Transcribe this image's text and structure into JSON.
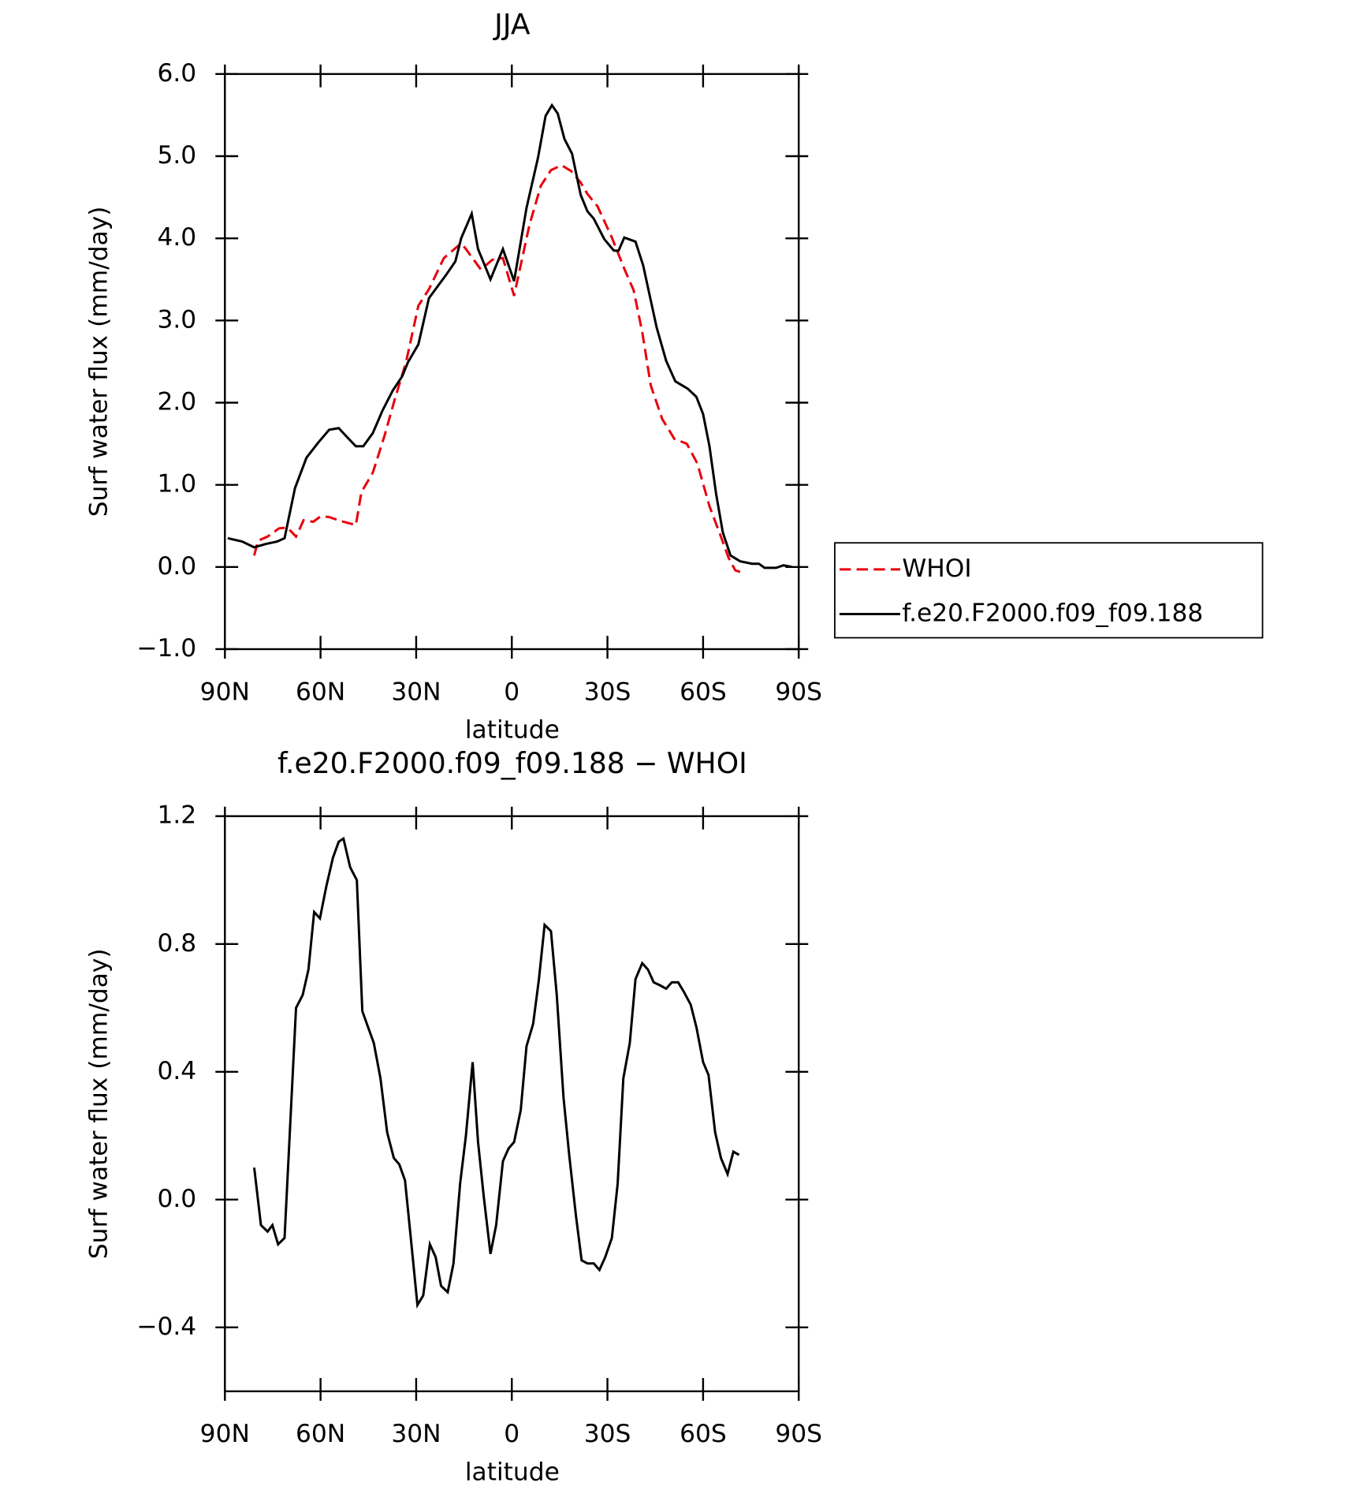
{
  "chart_data": [
    {
      "type": "line",
      "title": "JJA",
      "ylabel": "Surf water flux (mm/day)",
      "xlabel": "latitude",
      "xlim": [
        90,
        -90
      ],
      "xticks": [
        {
          "value": 90,
          "label": "90N"
        },
        {
          "value": 60,
          "label": "60N"
        },
        {
          "value": 30,
          "label": "30N"
        },
        0,
        {
          "value": -30,
          "label": "30S"
        },
        {
          "value": -60,
          "label": "60S"
        },
        {
          "value": -90,
          "label": "90S"
        }
      ],
      "ylim": [
        -1,
        6
      ],
      "yticks": [
        {
          "value": -1,
          "label": "−1.0"
        },
        {
          "value": 0,
          "label": "0.0"
        },
        {
          "value": 1,
          "label": "1.0"
        },
        {
          "value": 2,
          "label": "2.0"
        },
        {
          "value": 3,
          "label": "3.0"
        },
        {
          "value": 4,
          "label": "4.0"
        },
        {
          "value": 5,
          "label": "5.0"
        },
        {
          "value": 6,
          "label": "6.0"
        }
      ],
      "legend": "right",
      "series": [
        {
          "name": "WHOI",
          "color": "#e8000b",
          "style": "dashed",
          "x": [
            80.8,
            79.6,
            76.6,
            73.0,
            70.4,
            67.7,
            65.3,
            62.3,
            60.2,
            57.6,
            53.7,
            48.9,
            47.2,
            43.6,
            40.0,
            36.7,
            33.2,
            29.3,
            26.0,
            21.3,
            15.9,
            14.4,
            9.7,
            6.1,
            2.8,
            -0.7,
            -5.5,
            -9.1,
            -12.3,
            -15.6,
            -18.6,
            -21.6,
            -23.7,
            -26.9,
            -31.4,
            -35.3,
            -38.2,
            -40.9,
            -43.6,
            -47.2,
            -51.0,
            -54.9,
            -58.2,
            -62.0,
            -65.3,
            -68.0,
            -70.1,
            -71.6
          ],
          "values": [
            0.14,
            0.32,
            0.37,
            0.47,
            0.48,
            0.37,
            0.57,
            0.55,
            0.61,
            0.61,
            0.56,
            0.51,
            0.91,
            1.15,
            1.59,
            2.04,
            2.49,
            3.18,
            3.38,
            3.76,
            3.94,
            3.87,
            3.62,
            3.74,
            3.76,
            3.3,
            4.16,
            4.64,
            4.83,
            4.89,
            4.82,
            4.68,
            4.54,
            4.39,
            4.01,
            3.63,
            3.37,
            2.86,
            2.21,
            1.8,
            1.56,
            1.5,
            1.26,
            0.74,
            0.4,
            0.11,
            -0.04,
            -0.06
          ]
        },
        {
          "name": "f.e20.F2000.f09_f09.188",
          "color": "#000000",
          "style": "solid",
          "x": [
            89.1,
            84.6,
            80.8,
            77.2,
            73.6,
            71.3,
            68.0,
            64.4,
            60.8,
            57.3,
            54.3,
            51.9,
            48.9,
            46.6,
            43.6,
            40.6,
            37.3,
            34.4,
            32.6,
            29.3,
            26.0,
            23.4,
            20.7,
            17.7,
            15.9,
            12.6,
            10.6,
            6.7,
            2.8,
            -0.7,
            -4.6,
            -8.2,
            -10.6,
            -12.6,
            -14.4,
            -16.5,
            -18.9,
            -21.6,
            -23.7,
            -25.7,
            -29.0,
            -32.0,
            -33.5,
            -35.3,
            -38.8,
            -41.2,
            -45.4,
            -48.4,
            -51.3,
            -55.2,
            -57.9,
            -60.0,
            -62.0,
            -64.1,
            -66.2,
            -68.6,
            -71.6,
            -75.4,
            -77.5,
            -79.3,
            -82.9,
            -85.2,
            -87.9
          ],
          "values": [
            0.35,
            0.31,
            0.24,
            0.28,
            0.31,
            0.35,
            0.96,
            1.33,
            1.51,
            1.67,
            1.69,
            1.59,
            1.47,
            1.47,
            1.63,
            1.9,
            2.15,
            2.32,
            2.49,
            2.71,
            3.27,
            3.41,
            3.55,
            3.72,
            4.0,
            4.3,
            3.87,
            3.5,
            3.87,
            3.48,
            4.37,
            4.98,
            5.49,
            5.62,
            5.52,
            5.21,
            5.03,
            4.53,
            4.33,
            4.24,
            3.99,
            3.85,
            3.85,
            4.01,
            3.96,
            3.67,
            2.92,
            2.51,
            2.26,
            2.17,
            2.07,
            1.86,
            1.47,
            0.89,
            0.42,
            0.14,
            0.07,
            0.04,
            0.04,
            -0.01,
            -0.01,
            0.02,
            0.0
          ]
        }
      ]
    },
    {
      "type": "line",
      "title": "f.e20.F2000.f09_f09.188 − WHOI",
      "ylabel": "Surf water flux (mm/day)",
      "xlabel": "latitude",
      "xlim": [
        90,
        -90
      ],
      "xticks": [
        {
          "value": 90,
          "label": "90N"
        },
        {
          "value": 60,
          "label": "60N"
        },
        {
          "value": 30,
          "label": "30N"
        },
        0,
        {
          "value": -30,
          "label": "30S"
        },
        {
          "value": -60,
          "label": "60S"
        },
        {
          "value": -90,
          "label": "90S"
        }
      ],
      "ylim": [
        -0.6,
        1.2
      ],
      "yticks": [
        {
          "value": -0.4,
          "label": "−0.4"
        },
        {
          "value": 0,
          "label": "0.0"
        },
        0.4,
        0.8,
        1.2
      ],
      "series": [
        {
          "color": "#000000",
          "style": "solid",
          "x": [
            80.8,
            78.7,
            76.6,
            75.1,
            73.3,
            71.3,
            67.7,
            65.6,
            63.8,
            62.0,
            60.2,
            58.2,
            56.1,
            54.3,
            52.8,
            50.7,
            48.6,
            46.9,
            45.1,
            43.3,
            41.2,
            39.1,
            37.0,
            35.3,
            33.5,
            31.7,
            29.6,
            27.8,
            25.7,
            23.9,
            22.2,
            20.1,
            18.3,
            16.2,
            14.4,
            12.3,
            10.6,
            8.8,
            6.7,
            4.9,
            2.8,
            1.0,
            -0.7,
            -2.8,
            -4.6,
            -6.7,
            -8.5,
            -10.3,
            -12.3,
            -14.1,
            -16.2,
            -18.0,
            -20.1,
            -21.9,
            -23.7,
            -25.7,
            -27.5,
            -29.3,
            -31.4,
            -33.2,
            -35.0,
            -37.0,
            -38.8,
            -40.9,
            -42.7,
            -44.5,
            -46.6,
            -48.4,
            -50.2,
            -52.2,
            -54.0,
            -56.1,
            -57.9,
            -60.0,
            -61.7,
            -63.8,
            -65.6,
            -67.7,
            -69.5,
            -71.3
          ],
          "values": [
            0.1,
            -0.08,
            -0.1,
            -0.08,
            -0.14,
            -0.12,
            0.6,
            0.64,
            0.72,
            0.9,
            0.88,
            0.98,
            1.07,
            1.12,
            1.13,
            1.04,
            1.0,
            0.59,
            0.54,
            0.49,
            0.38,
            0.21,
            0.13,
            0.11,
            0.06,
            -0.12,
            -0.33,
            -0.3,
            -0.14,
            -0.18,
            -0.27,
            -0.29,
            -0.2,
            0.05,
            0.2,
            0.43,
            0.18,
            0.01,
            -0.17,
            -0.08,
            0.12,
            0.16,
            0.18,
            0.28,
            0.48,
            0.55,
            0.69,
            0.86,
            0.84,
            0.64,
            0.32,
            0.14,
            -0.05,
            -0.19,
            -0.2,
            -0.2,
            -0.22,
            -0.18,
            -0.12,
            0.05,
            0.38,
            0.49,
            0.69,
            0.74,
            0.72,
            0.68,
            0.67,
            0.66,
            0.68,
            0.68,
            0.65,
            0.61,
            0.54,
            0.43,
            0.39,
            0.21,
            0.13,
            0.08,
            0.15,
            0.14
          ]
        }
      ]
    }
  ]
}
